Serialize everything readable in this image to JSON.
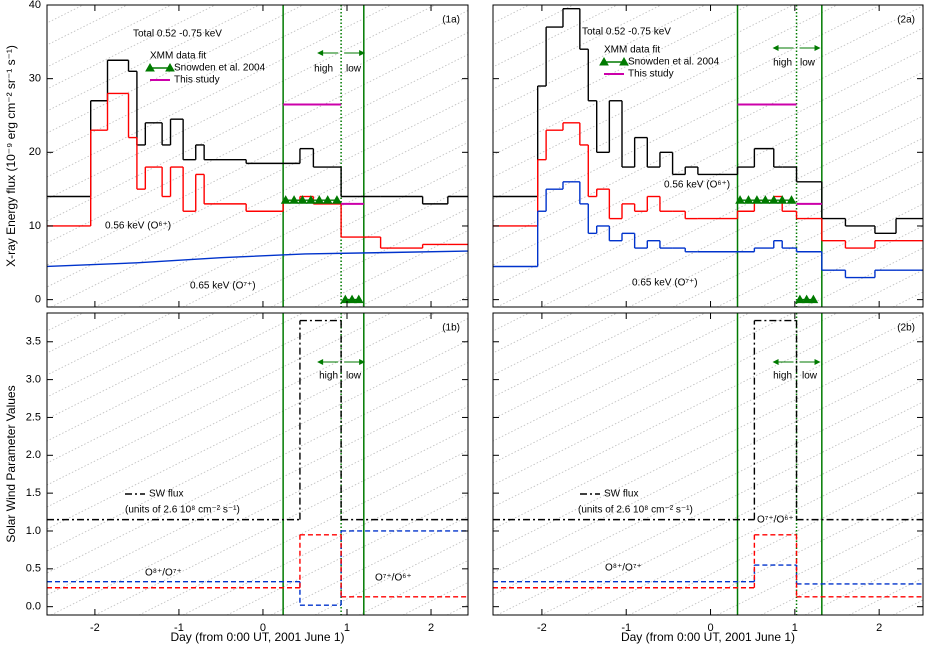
{
  "chart_data": [
    {
      "type": "line",
      "title": "(1a)",
      "ylabel": "X-ray Energy flux (10⁻⁹ erg cm⁻² sr⁻¹ s⁻¹)",
      "xlim": [
        -2.57,
        2.44
      ],
      "xticks": [
        -2,
        -1,
        0,
        1,
        2
      ],
      "ylim": [
        -1,
        40
      ],
      "yticks": [
        0,
        10,
        20,
        30,
        40
      ],
      "vlines": [
        {
          "x": 0.24,
          "color": "#007a00"
        },
        {
          "x": 0.93,
          "color": "#007a00",
          "style": "dotted"
        },
        {
          "x": 1.2,
          "color": "#007a00"
        }
      ],
      "series": [
        {
          "color": "#000000",
          "bins": [
            -2.57,
            -2.05,
            -1.85,
            -1.6,
            -1.5,
            -1.4,
            -1.2,
            -1.1,
            -0.95,
            -0.8,
            -0.7,
            -0.2,
            0.24,
            0.44,
            0.6,
            0.93,
            1.4,
            1.9,
            2.2,
            2.44
          ],
          "values": [
            14,
            27,
            32.5,
            31,
            21,
            24,
            21,
            24.5,
            19,
            21,
            19,
            18.5,
            18.5,
            20.5,
            18,
            14,
            14,
            13,
            14
          ]
        },
        {
          "color": "#ff0000",
          "bins": [
            -2.57,
            -2.05,
            -1.85,
            -1.6,
            -1.5,
            -1.4,
            -1.2,
            -1.1,
            -0.95,
            -0.8,
            -0.7,
            -0.2,
            0.24,
            0.44,
            0.6,
            0.93,
            1.4,
            1.9,
            2.2,
            2.44
          ],
          "values": [
            10,
            23,
            28,
            22,
            15,
            18,
            14,
            18,
            12,
            17,
            13,
            12,
            13.5,
            14,
            13,
            8.5,
            7,
            7.5,
            7.5
          ]
        },
        {
          "color": "#0033cc",
          "x": [
            -2.57,
            -1.5,
            -0.5,
            0.5,
            1.5,
            2.44
          ],
          "values": [
            4.5,
            5,
            5.7,
            6.2,
            6.4,
            6.6
          ]
        },
        {
          "name": "Snowden et al. 2004",
          "color": "#007a00",
          "marker": "triangle",
          "x": [
            0.27,
            0.37,
            0.47,
            0.57,
            0.67,
            0.77,
            0.88,
            0.93,
            0.98,
            1.06,
            1.14
          ],
          "values": [
            13.5,
            13.5,
            13.5,
            13.5,
            13.5,
            13.5,
            13.5,
            null,
            0,
            0,
            0
          ]
        },
        {
          "name": "This study",
          "color": "#cc00aa",
          "width": 2,
          "x": [
            0.24,
            0.93,
            0.93,
            0.93,
            1.2
          ],
          "values": [
            26.5,
            26.5,
            null,
            13,
            13
          ]
        }
      ],
      "annotations": [
        {
          "text": "(1a)"
        },
        {
          "text": "Total 0.52 -0.75 keV"
        },
        {
          "text": "XMM data fit"
        },
        {
          "text": "high",
          "color": "#007a00"
        },
        {
          "text": "low",
          "color": "#007a00"
        },
        {
          "text": "0.56 keV (O⁶⁺)",
          "color": "#ff0000"
        },
        {
          "text": "0.65 keV (O⁷⁺)",
          "color": "#0033cc"
        }
      ]
    },
    {
      "type": "line",
      "title": "(1b)",
      "ylabel": "Solar Wind Parameter Values",
      "xlabel": "Day (from 0:00 UT, 2001 June 1)",
      "xlim": [
        -2.57,
        2.44
      ],
      "xticks": [
        -2,
        -1,
        0,
        1,
        2
      ],
      "ylim": [
        -0.11,
        3.88
      ],
      "yticks": [
        {
          "value": 0,
          "label": "0.0"
        },
        0.5,
        {
          "value": 1,
          "label": "1.0"
        },
        1.5,
        {
          "value": 2,
          "label": "2.0"
        },
        2.5,
        {
          "value": 3,
          "label": "3.0"
        },
        3.5
      ],
      "vlines": [
        {
          "x": 0.24,
          "color": "#007a00"
        },
        {
          "x": 0.93,
          "color": "#007a00",
          "style": "dotted"
        },
        {
          "x": 1.2,
          "color": "#007a00"
        }
      ],
      "series": [
        {
          "name": "SW flux",
          "color": "#000000",
          "dash": "dashdot",
          "bins": [
            -2.57,
            0.44,
            0.93,
            2.44
          ],
          "values": [
            1.15,
            3.78,
            1.15
          ]
        },
        {
          "color": "#0033cc",
          "dash": "dashed",
          "bins": [
            -2.57,
            0.44,
            0.93,
            2.44
          ],
          "values": [
            0.33,
            0.02,
            1.0
          ]
        },
        {
          "color": "#ff0000",
          "dash": "dashed",
          "bins": [
            -2.57,
            0.44,
            0.93,
            2.44
          ],
          "values": [
            0.25,
            0.95,
            0.13
          ]
        }
      ],
      "annotations": [
        {
          "text": "(1b)"
        },
        {
          "text": "high",
          "color": "#007a00"
        },
        {
          "text": "low",
          "color": "#007a00"
        },
        {
          "text": "(units of 2.6 10⁸ cm⁻² s⁻¹)"
        },
        {
          "text": "O⁸⁺/O⁷⁺",
          "color": "#0033cc"
        },
        {
          "text": "O⁷⁺/O⁶⁺",
          "color": "#ff0000"
        }
      ]
    },
    {
      "type": "line",
      "title": "(2a)",
      "xlim": [
        -2.58,
        2.52
      ],
      "xticks": [
        -2,
        -1,
        0,
        1,
        2
      ],
      "ylim": [
        -1,
        40
      ],
      "yticks": [
        0,
        10,
        20,
        30,
        40
      ],
      "vlines": [
        {
          "x": 0.32,
          "color": "#007a00"
        },
        {
          "x": 1.02,
          "color": "#007a00",
          "style": "dotted"
        },
        {
          "x": 1.32,
          "color": "#007a00"
        }
      ],
      "series": [
        {
          "color": "#000000",
          "bins": [
            -2.58,
            -2.05,
            -1.95,
            -1.75,
            -1.55,
            -1.45,
            -1.35,
            -1.2,
            -1.05,
            -0.9,
            -0.75,
            -0.6,
            -0.45,
            -0.3,
            -0.15,
            0.32,
            0.52,
            0.75,
            0.85,
            1.02,
            1.32,
            1.6,
            1.95,
            2.2,
            2.52
          ],
          "values": [
            14,
            29,
            37,
            39.5,
            34,
            27,
            20,
            27,
            18,
            22,
            18,
            20,
            17,
            18,
            17,
            18,
            20.5,
            18,
            18,
            16,
            11,
            10,
            9,
            11
          ]
        },
        {
          "color": "#ff0000",
          "bins": [
            -2.58,
            -2.05,
            -1.95,
            -1.75,
            -1.55,
            -1.45,
            -1.35,
            -1.2,
            -1.05,
            -0.9,
            -0.75,
            -0.6,
            -0.45,
            -0.3,
            -0.15,
            0.32,
            0.52,
            0.75,
            0.85,
            1.02,
            1.32,
            1.6,
            1.95,
            2.2,
            2.52
          ],
          "values": [
            10,
            19,
            23,
            24,
            21,
            14,
            15,
            11,
            13,
            12,
            14,
            12,
            12,
            11,
            11,
            12,
            13.5,
            14,
            12,
            11,
            8,
            7,
            8,
            8
          ]
        },
        {
          "color": "#0033cc",
          "bins": [
            -2.58,
            -2.05,
            -1.95,
            -1.75,
            -1.55,
            -1.45,
            -1.35,
            -1.2,
            -1.05,
            -0.9,
            -0.75,
            -0.6,
            -0.45,
            -0.3,
            -0.15,
            0.32,
            0.52,
            0.75,
            0.85,
            1.02,
            1.32,
            1.6,
            1.95,
            2.2,
            2.52
          ],
          "values": [
            4.5,
            12,
            15,
            16,
            13,
            9,
            10,
            8,
            9,
            7,
            8,
            7,
            7,
            6.5,
            6.5,
            6.5,
            7,
            8,
            7,
            6.5,
            4,
            3,
            4,
            4
          ]
        },
        {
          "name": "Snowden et al. 2004",
          "color": "#007a00",
          "marker": "triangle",
          "x": [
            0.35,
            0.45,
            0.55,
            0.65,
            0.75,
            0.85,
            0.96,
            1.02,
            1.06,
            1.14,
            1.22
          ],
          "values": [
            13.5,
            13.5,
            13.5,
            13.5,
            13.5,
            13.5,
            13.5,
            null,
            0,
            0,
            0
          ]
        },
        {
          "name": "This study",
          "color": "#cc00aa",
          "width": 2,
          "x": [
            0.32,
            1.02,
            1.02,
            1.02,
            1.32
          ],
          "values": [
            26.5,
            26.5,
            null,
            13,
            13
          ]
        }
      ],
      "annotations": [
        {
          "text": "(2a)"
        },
        {
          "text": "Total 0.52 -0.75 keV"
        },
        {
          "text": "XMM data fit"
        },
        {
          "text": "high",
          "color": "#007a00"
        },
        {
          "text": "low",
          "color": "#007a00"
        },
        {
          "text": "0.56 keV (O⁶⁺)",
          "color": "#ff0000"
        },
        {
          "text": "0.65 keV (O⁷⁺)",
          "color": "#0033cc"
        }
      ]
    },
    {
      "type": "line",
      "title": "(2b)",
      "xlabel": "Day (from 0:00 UT, 2001 June 1)",
      "xlim": [
        -2.58,
        2.52
      ],
      "xticks": [
        -2,
        -1,
        0,
        1,
        2
      ],
      "ylim": [
        -0.11,
        3.88
      ],
      "yticks": [
        0,
        0.5,
        1,
        1.5,
        2,
        2.5,
        3,
        3.5
      ],
      "vlines": [
        {
          "x": 0.32,
          "color": "#007a00"
        },
        {
          "x": 1.02,
          "color": "#007a00",
          "style": "dotted"
        },
        {
          "x": 1.32,
          "color": "#007a00"
        }
      ],
      "series": [
        {
          "name": "SW flux",
          "color": "#000000",
          "dash": "dashdot",
          "bins": [
            -2.58,
            0.52,
            1.02,
            2.52
          ],
          "values": [
            1.15,
            3.78,
            1.15
          ]
        },
        {
          "color": "#0033cc",
          "dash": "dashed",
          "bins": [
            -2.58,
            0.52,
            1.02,
            2.52
          ],
          "values": [
            0.33,
            0.55,
            0.3
          ]
        },
        {
          "color": "#ff0000",
          "dash": "dashed",
          "bins": [
            -2.58,
            0.52,
            1.02,
            2.52
          ],
          "values": [
            0.25,
            0.95,
            0.13
          ]
        }
      ],
      "annotations": [
        {
          "text": "(2b)"
        },
        {
          "text": "high",
          "color": "#007a00"
        },
        {
          "text": "low",
          "color": "#007a00"
        },
        {
          "text": "(units of 2.6 10⁸ cm⁻² s⁻¹)"
        },
        {
          "text": "O⁷⁺/O⁶⁺",
          "color": "#ff0000"
        },
        {
          "text": "O⁸⁺/O⁷⁺",
          "color": "#0033cc"
        }
      ]
    }
  ]
}
